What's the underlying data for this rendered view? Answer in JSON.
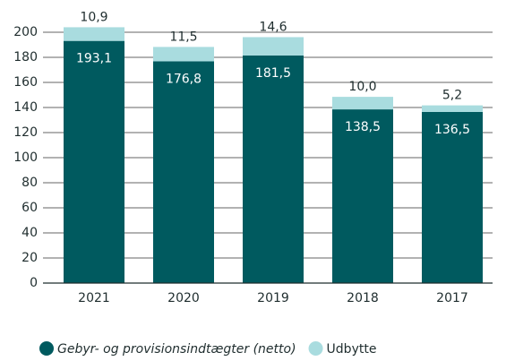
{
  "chart_data": {
    "type": "stacked_bar",
    "categories": [
      "2021",
      "2020",
      "2019",
      "2018",
      "2017"
    ],
    "series": [
      {
        "name": "Gebyr- og provisionsindtægter (netto)",
        "color": "#005a5f",
        "values": [
          193.1,
          176.8,
          181.5,
          138.5,
          136.5
        ],
        "value_labels": [
          "193,1",
          "176,8",
          "181,5",
          "138,5",
          "136,5"
        ]
      },
      {
        "name": "Udbytte",
        "color": "#a9dcdf",
        "values": [
          10.9,
          11.5,
          14.6,
          10.0,
          5.2
        ],
        "value_labels": [
          "10,9",
          "11,5",
          "14,6",
          "10,0",
          "5,2"
        ]
      }
    ],
    "ylim": [
      0,
      200
    ],
    "yticks": [
      0,
      20,
      40,
      60,
      80,
      100,
      120,
      140,
      160,
      180,
      200
    ],
    "grid": true
  }
}
